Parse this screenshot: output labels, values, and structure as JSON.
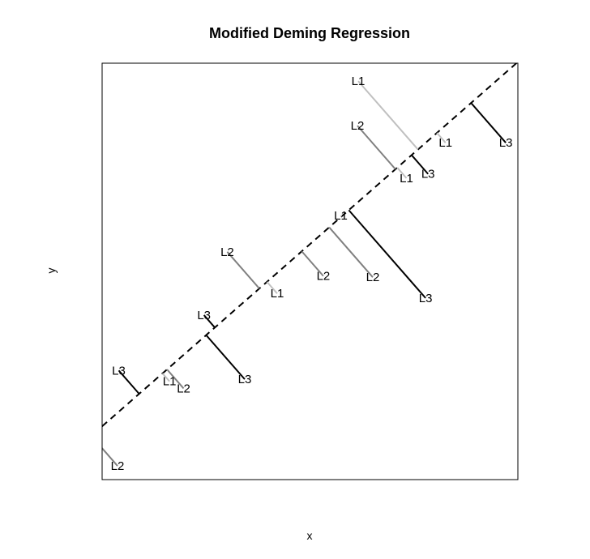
{
  "chart_data": {
    "type": "scatter",
    "title": "Modified Deming Regression",
    "xlabel": "x",
    "ylabel": "y",
    "xlim": [
      0,
      100
    ],
    "ylim": [
      0,
      100
    ],
    "axes_ticks": false,
    "grid": false,
    "legend": "none",
    "regression_line": {
      "style": "dashed",
      "color": "#000000",
      "intercept": 12.8,
      "slope": 0.875
    },
    "series": [
      {
        "label": "L1",
        "color": "#c0c0c0",
        "points": [
          {
            "x": 61.6,
            "y": 95.7
          },
          {
            "x": 73.2,
            "y": 72.4
          },
          {
            "x": 57.4,
            "y": 63.4
          },
          {
            "x": 42.1,
            "y": 44.7
          },
          {
            "x": 16.2,
            "y": 23.6
          },
          {
            "x": 82.6,
            "y": 80.9
          }
        ]
      },
      {
        "label": "L2",
        "color": "#808080",
        "points": [
          {
            "x": 61.4,
            "y": 85.0
          },
          {
            "x": 3.7,
            "y": 3.3
          },
          {
            "x": 53.2,
            "y": 48.9
          },
          {
            "x": 65.1,
            "y": 48.6
          },
          {
            "x": 30.1,
            "y": 54.7
          },
          {
            "x": 19.6,
            "y": 21.9
          }
        ]
      },
      {
        "label": "L3",
        "color": "#000000",
        "points": [
          {
            "x": 78.4,
            "y": 73.4
          },
          {
            "x": 97.1,
            "y": 80.9
          },
          {
            "x": 77.8,
            "y": 43.6
          },
          {
            "x": 4.0,
            "y": 26.2
          },
          {
            "x": 24.5,
            "y": 39.5
          },
          {
            "x": 34.3,
            "y": 24.1
          }
        ]
      }
    ]
  }
}
